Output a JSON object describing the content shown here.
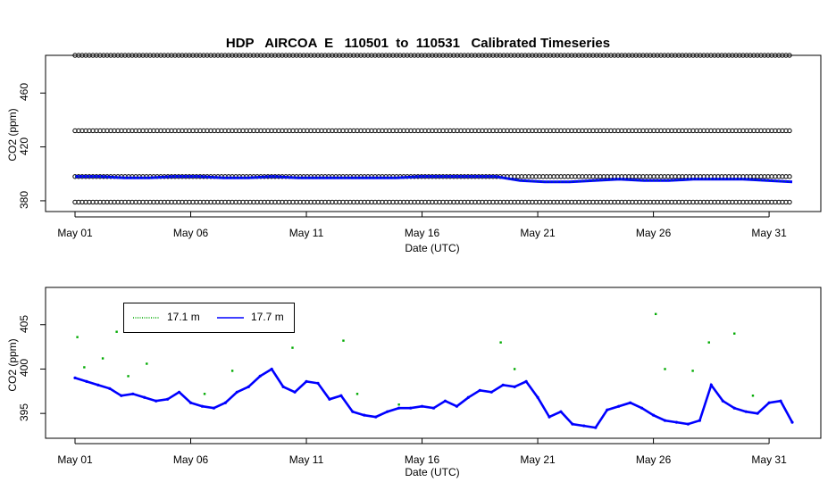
{
  "chart_data": [
    {
      "type": "scatter",
      "title": "HDP   AIRCOA  E   110501  to  110531   Calibrated Timeseries",
      "xlabel": "Date (UTC)",
      "ylabel": "CO2 (ppm)",
      "x_tick_labels": [
        "May 01",
        "May 06",
        "May 11",
        "May 16",
        "May 21",
        "May 26",
        "May 31"
      ],
      "y_tick_labels": [
        "380",
        "420",
        "460"
      ],
      "xlim_days": [
        1,
        32
      ],
      "ylim": [
        372,
        488
      ],
      "series": [
        {
          "color": "#000000",
          "description_bands": [
            488,
            432,
            398,
            379
          ]
        },
        {
          "color": "#00aa00",
          "values_approx": [
            398,
            398,
            397,
            397,
            398,
            398,
            397,
            397,
            398,
            397,
            397,
            397,
            397,
            397,
            398,
            398,
            398,
            398,
            395,
            394,
            394,
            395,
            396,
            395,
            395,
            396,
            396,
            396,
            395,
            394
          ]
        },
        {
          "color": "#0000ff",
          "values_approx": [
            398,
            398,
            397,
            397,
            398,
            398,
            397,
            397,
            398,
            397,
            397,
            397,
            397,
            397,
            398,
            398,
            398,
            398,
            395,
            394,
            394,
            395,
            396,
            395,
            395,
            396,
            396,
            396,
            395,
            394
          ]
        }
      ]
    },
    {
      "type": "line",
      "title": "",
      "xlabel": "Date (UTC)",
      "ylabel": "CO2 (ppm)",
      "x_tick_labels": [
        "May 01",
        "May 06",
        "May 11",
        "May 16",
        "May 21",
        "May 26",
        "May 31"
      ],
      "y_tick_labels": [
        "395",
        "400",
        "405"
      ],
      "xlim_days": [
        1,
        32
      ],
      "ylim": [
        392.2,
        409.2
      ],
      "legend": [
        {
          "name": "17.1 m",
          "color": "#00aa00"
        },
        {
          "name": "17.7 m",
          "color": "#0000ff"
        }
      ],
      "series": [
        {
          "name": "17.7 m",
          "color": "#0000ff",
          "x_days": [
            1.0,
            1.5,
            2.0,
            2.5,
            3.0,
            3.5,
            4.0,
            4.5,
            5.0,
            5.5,
            6.0,
            6.5,
            7.0,
            7.5,
            8.0,
            8.5,
            9.0,
            9.5,
            10.0,
            10.5,
            11.0,
            11.5,
            12.0,
            12.5,
            13.0,
            13.5,
            14.0,
            14.5,
            15.0,
            15.5,
            16.0,
            16.5,
            17.0,
            17.5,
            18.0,
            18.5,
            19.0,
            19.5,
            20.0,
            20.5,
            21.0,
            21.5,
            22.0,
            22.5,
            23.0,
            23.5,
            24.0,
            24.5,
            25.0,
            25.5,
            26.0,
            26.5,
            27.0,
            27.5,
            28.0,
            28.5,
            29.0,
            29.5,
            30.0,
            30.5,
            31.0,
            31.5,
            32.0
          ],
          "values": [
            399.0,
            398.6,
            398.2,
            397.8,
            397.0,
            397.2,
            396.8,
            396.4,
            396.6,
            397.4,
            396.2,
            395.8,
            395.6,
            396.2,
            397.4,
            398.0,
            399.2,
            400.0,
            398.0,
            397.4,
            398.6,
            398.4,
            396.6,
            397.0,
            395.2,
            394.8,
            394.6,
            395.2,
            395.6,
            395.6,
            395.8,
            395.6,
            396.4,
            395.8,
            396.8,
            397.6,
            397.4,
            398.2,
            398.0,
            398.6,
            396.8,
            394.6,
            395.2,
            393.8,
            393.6,
            393.4,
            395.4,
            395.8,
            396.2,
            395.6,
            394.8,
            394.2,
            394.0,
            393.8,
            394.2,
            398.2,
            396.4,
            395.6,
            395.2,
            395.0,
            396.2,
            396.4,
            394.0
          ]
        },
        {
          "name": "17.1 m",
          "color": "#00aa00",
          "outliers": [
            [
              1.1,
              403.6
            ],
            [
              1.4,
              400.2
            ],
            [
              2.2,
              401.2
            ],
            [
              2.8,
              404.2
            ],
            [
              3.3,
              399.2
            ],
            [
              4.1,
              400.6
            ],
            [
              6.6,
              397.2
            ],
            [
              7.8,
              399.8
            ],
            [
              10.4,
              402.4
            ],
            [
              12.6,
              403.2
            ],
            [
              13.2,
              397.2
            ],
            [
              15.0,
              396.0
            ],
            [
              19.4,
              403.0
            ],
            [
              20.0,
              400.0
            ],
            [
              26.1,
              406.2
            ],
            [
              26.5,
              400.0
            ],
            [
              27.7,
              399.8
            ],
            [
              28.4,
              403.0
            ],
            [
              29.5,
              404.0
            ],
            [
              30.3,
              397.0
            ]
          ]
        }
      ]
    }
  ]
}
